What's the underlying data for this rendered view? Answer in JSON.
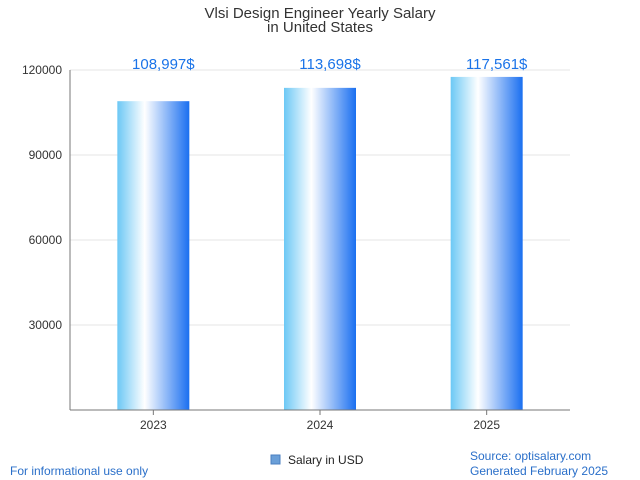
{
  "chart_data": {
    "type": "bar",
    "title": "Vlsi Design Engineer Yearly Salary",
    "subtitle": "in United States",
    "categories": [
      "2023",
      "2024",
      "2025"
    ],
    "series": [
      {
        "name": "Salary in USD",
        "values": [
          108997,
          113698,
          117561
        ]
      }
    ],
    "data_labels": [
      "108,997$",
      "113,698$",
      "117,561$"
    ],
    "yticks": [
      "30000",
      "60000",
      "90000",
      "120000"
    ],
    "ylim": [
      0,
      120000
    ],
    "grid": true,
    "legend": "bottom-center",
    "colors": {
      "bar_dark": "#1a6ff0",
      "bar_light": "#6cc8f5",
      "label": "#1a73e8"
    }
  },
  "footer": {
    "disclaimer": "For informational use only",
    "source": "Source: optisalary.com",
    "generated": "Generated February 2025"
  }
}
